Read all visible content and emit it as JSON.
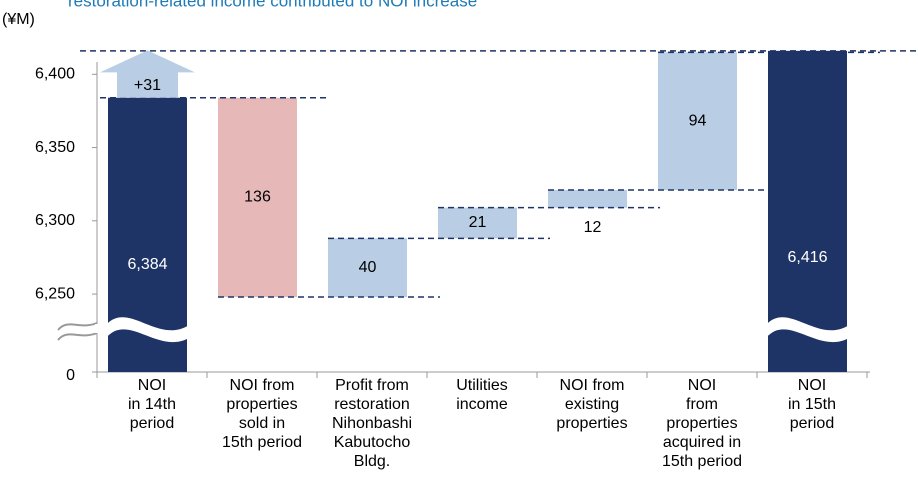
{
  "chart_data": {
    "type": "waterfall",
    "title": "restoration-related income contributed to NOI increase",
    "y_label": "(¥M)",
    "categories": [
      [
        "NOI",
        "in 14th",
        "period"
      ],
      [
        "NOI from",
        "properties",
        "sold in",
        "15th period"
      ],
      [
        "Profit from",
        "restoration",
        "Nihonbashi",
        "Kabutocho",
        "Bldg."
      ],
      [
        "Utilities",
        "income"
      ],
      [
        "NOI from",
        "existing",
        "properties"
      ],
      [
        "NOI",
        "from",
        "properties",
        "acquired in",
        "15th period"
      ],
      [
        "NOI",
        "in 15th",
        "period"
      ]
    ],
    "values": [
      6384,
      -136,
      40,
      21,
      12,
      94,
      6416
    ],
    "value_labels": [
      "6,384",
      "136",
      "40",
      "21",
      "12",
      "94",
      "6,416"
    ],
    "totals": [
      true,
      false,
      false,
      false,
      false,
      false,
      true
    ],
    "colors": {
      "total": "#1f3466",
      "increase": "#b9cde5",
      "decrease": "#e6b9b8"
    },
    "annotation": {
      "value": 31,
      "label": "+31"
    },
    "ylim": [
      0,
      6420
    ],
    "axis_break": [
      0,
      6220
    ],
    "yticks": [
      0,
      {
        "value": 6250,
        "label": "6,250"
      },
      {
        "value": 6300,
        "label": "6,300"
      },
      {
        "value": 6350,
        "label": "6,350"
      },
      {
        "value": 6400,
        "label": "6,400"
      }
    ]
  }
}
